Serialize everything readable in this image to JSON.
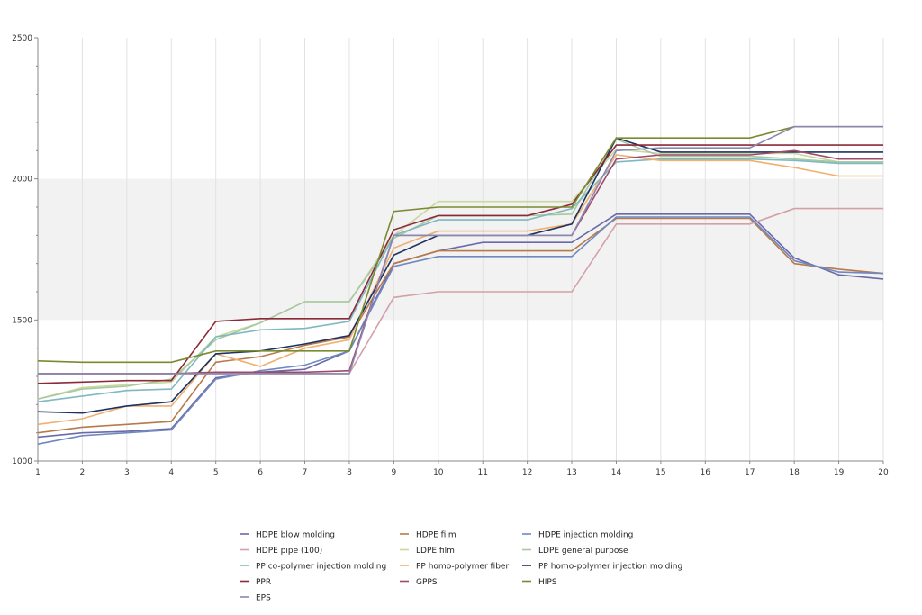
{
  "chart_data": {
    "type": "line",
    "title": "",
    "xlabel": "",
    "ylabel": "",
    "x": [
      1,
      2,
      3,
      4,
      5,
      6,
      7,
      8,
      9,
      10,
      11,
      12,
      13,
      14,
      15,
      16,
      17,
      18,
      19,
      20
    ],
    "xlim": [
      1,
      20
    ],
    "ylim": [
      1000,
      2500
    ],
    "y_ticks": [
      1000,
      1500,
      2000,
      2500
    ],
    "shaded_band": [
      1500,
      2000
    ],
    "grid": true,
    "legend_position": "bottom",
    "series": [
      {
        "name": "HDPE blow molding",
        "color": "#6a6aa8",
        "values": [
          1085,
          1100,
          1105,
          1115,
          1295,
          1315,
          1325,
          1390,
          1700,
          1745,
          1775,
          1775,
          1775,
          1875,
          1875,
          1875,
          1875,
          1720,
          1660,
          1645
        ]
      },
      {
        "name": "HDPE film",
        "color": "#b87a4a",
        "values": [
          1100,
          1120,
          1130,
          1140,
          1350,
          1370,
          1410,
          1440,
          1700,
          1745,
          1745,
          1745,
          1745,
          1860,
          1860,
          1860,
          1860,
          1700,
          1680,
          1665
        ]
      },
      {
        "name": "HDPE injection molding",
        "color": "#6f88c0",
        "values": [
          1060,
          1090,
          1100,
          1110,
          1290,
          1320,
          1340,
          1390,
          1690,
          1725,
          1725,
          1725,
          1725,
          1865,
          1865,
          1865,
          1865,
          1710,
          1670,
          1665
        ]
      },
      {
        "name": "HDPE pipe (100)",
        "color": "#d4a0a8",
        "values": [
          1310,
          1310,
          1310,
          1310,
          1310,
          1310,
          1310,
          1310,
          1580,
          1600,
          1600,
          1600,
          1600,
          1840,
          1840,
          1840,
          1840,
          1895,
          1895,
          1895
        ]
      },
      {
        "name": "LDPE film",
        "color": "#c8d8a0",
        "values": [
          1220,
          1260,
          1270,
          1280,
          1440,
          1490,
          1565,
          1565,
          1800,
          1920,
          1920,
          1920,
          1920,
          2105,
          2090,
          2090,
          2090,
          2090,
          2060,
          2060
        ]
      },
      {
        "name": "LDPE general purpose",
        "color": "#a8c8a0",
        "values": [
          1220,
          1255,
          1265,
          1290,
          1430,
          1490,
          1565,
          1565,
          1790,
          1870,
          1870,
          1870,
          1875,
          2140,
          2080,
          2080,
          2080,
          2070,
          2060,
          2060
        ]
      },
      {
        "name": "PP co-polymer injection molding",
        "color": "#80b8c0",
        "values": [
          1210,
          1230,
          1250,
          1255,
          1440,
          1465,
          1470,
          1495,
          1800,
          1855,
          1855,
          1855,
          1895,
          2060,
          2070,
          2070,
          2070,
          2065,
          2055,
          2055
        ]
      },
      {
        "name": "PP homo-polymer fiber",
        "color": "#f0b070",
        "values": [
          1130,
          1150,
          1195,
          1195,
          1380,
          1335,
          1400,
          1430,
          1755,
          1815,
          1815,
          1815,
          1840,
          2085,
          2065,
          2065,
          2065,
          2040,
          2010,
          2010
        ]
      },
      {
        "name": "PP homo-polymer injection molding",
        "color": "#1e3260",
        "values": [
          1175,
          1170,
          1195,
          1210,
          1380,
          1390,
          1415,
          1445,
          1730,
          1800,
          1800,
          1800,
          1840,
          2145,
          2095,
          2095,
          2095,
          2095,
          2095,
          2095
        ]
      },
      {
        "name": "PPR",
        "color": "#8c2a3a",
        "values": [
          1275,
          1280,
          1285,
          1285,
          1495,
          1505,
          1505,
          1505,
          1820,
          1870,
          1870,
          1870,
          1910,
          2120,
          2120,
          2120,
          2120,
          2120,
          2120,
          2120
        ]
      },
      {
        "name": "GPPS",
        "color": "#a04a6a",
        "values": [
          1310,
          1310,
          1310,
          1310,
          1315,
          1315,
          1315,
          1320,
          1800,
          1800,
          1800,
          1800,
          1800,
          2070,
          2085,
          2085,
          2085,
          2100,
          2070,
          2070
        ]
      },
      {
        "name": "HIPS",
        "color": "#7a8a30",
        "values": [
          1355,
          1350,
          1350,
          1350,
          1390,
          1390,
          1390,
          1390,
          1885,
          1900,
          1900,
          1900,
          1900,
          2145,
          2145,
          2145,
          2145,
          2185,
          2185,
          2185
        ]
      },
      {
        "name": "EPS",
        "color": "#8a88b0",
        "values": [
          1310,
          1310,
          1310,
          1310,
          1310,
          1310,
          1310,
          1310,
          1800,
          1800,
          1800,
          1800,
          1800,
          2100,
          2110,
          2110,
          2110,
          2185,
          2185,
          2185
        ]
      }
    ]
  }
}
